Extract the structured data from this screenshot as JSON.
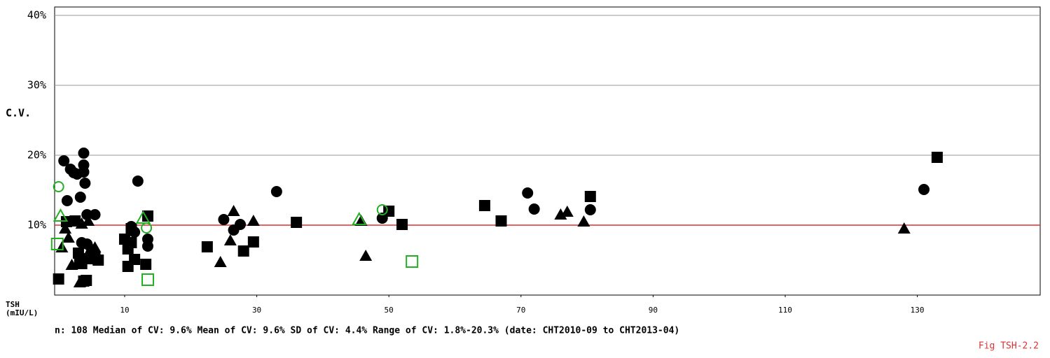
{
  "chart_data": {
    "type": "scatter",
    "y_label": "C.V.",
    "x_label": [
      "TSH",
      "(mIU/L)"
    ],
    "stats": "n: 108   Median of CV: 9.6%   Mean of CV: 9.6%   SD of CV: 4.4%   Range of CV: 1.8%-20.3% (date: CHT2010-09 to CHT2013-04)",
    "figure_label": "Fig TSH-2.2",
    "xlim": [
      -0.6,
      148.6
    ],
    "xticks": [
      10,
      30,
      50,
      70,
      90,
      110,
      130
    ],
    "ylim": [
      0,
      41.2
    ],
    "yticks": [
      {
        "value": 10,
        "label": "10%"
      },
      {
        "value": 20,
        "label": "20%"
      },
      {
        "value": 30,
        "label": "30%"
      },
      {
        "value": 40,
        "label": "40%"
      }
    ],
    "grid": true,
    "reference_line": {
      "value": 10,
      "color": "#e03030"
    },
    "series": [
      {
        "marker": "circle",
        "color": "#000000",
        "filled": true,
        "x": [
          0.8,
          1.3,
          1.8,
          2.3,
          2.8,
          3.3,
          3.8,
          3.8,
          3.8,
          4,
          4.3,
          3.5,
          4.3,
          5.5,
          1.5,
          11,
          11.5,
          12,
          13.5,
          13.5,
          25,
          26.5,
          27.5,
          33,
          49,
          71,
          72,
          80.5,
          131
        ],
        "values": [
          19.2,
          13.5,
          18,
          17.5,
          17.3,
          14,
          20.3,
          18.6,
          17.6,
          16,
          11.5,
          7.5,
          7.3,
          11.5,
          10.5,
          9.8,
          9,
          16.3,
          8,
          7,
          10.8,
          9.3,
          10.1,
          14.8,
          11,
          14.6,
          12.3,
          12.2,
          15.1
        ]
      },
      {
        "marker": "square",
        "color": "#000000",
        "filled": true,
        "x": [
          0,
          1.2,
          2.5,
          3,
          3.2,
          3.5,
          3.8,
          4.2,
          4.5,
          5,
          5.5,
          6,
          10,
          10.5,
          10.5,
          11,
          11.5,
          11,
          13.5,
          13.2,
          22.5,
          28,
          29.5,
          36,
          50,
          52,
          64.5,
          67,
          80.5,
          133
        ],
        "values": [
          2.3,
          10.5,
          10.6,
          6,
          5.1,
          4.5,
          2,
          2.1,
          5.2,
          6.2,
          5.4,
          5,
          8,
          6.6,
          4.1,
          7.5,
          5.1,
          9.5,
          11.3,
          4.4,
          6.9,
          6.3,
          7.6,
          10.4,
          12,
          10.1,
          12.8,
          10.6,
          14.1,
          19.7
        ]
      },
      {
        "marker": "triangle",
        "color": "#000000",
        "filled": true,
        "x": [
          0.5,
          1,
          1.5,
          2,
          2.8,
          3.2,
          3.5,
          4.5,
          4.5,
          5,
          5.5,
          24.5,
          26,
          26.5,
          29.5,
          45.8,
          46.5,
          76,
          77,
          79.5,
          128
        ],
        "values": [
          6.8,
          9.5,
          8.2,
          4.3,
          4.5,
          1.8,
          10.2,
          10.6,
          6,
          6.7,
          6.8,
          4.7,
          7.8,
          12,
          10.6,
          10.6,
          5.6,
          11.5,
          11.9,
          10.5,
          9.5
        ]
      },
      {
        "marker": "circle",
        "color": "#22b022",
        "filled": false,
        "x": [
          0,
          13.3,
          49
        ],
        "values": [
          15.5,
          9.6,
          12.2
        ]
      },
      {
        "marker": "square",
        "color": "#22b022",
        "filled": false,
        "x": [
          -0.2,
          13.5,
          53.5
        ],
        "values": [
          7.3,
          2.2,
          4.8
        ]
      },
      {
        "marker": "triangle",
        "color": "#22b022",
        "filled": false,
        "x": [
          0.3,
          12.8,
          45.5
        ],
        "values": [
          11.3,
          11,
          10.8
        ]
      }
    ]
  }
}
